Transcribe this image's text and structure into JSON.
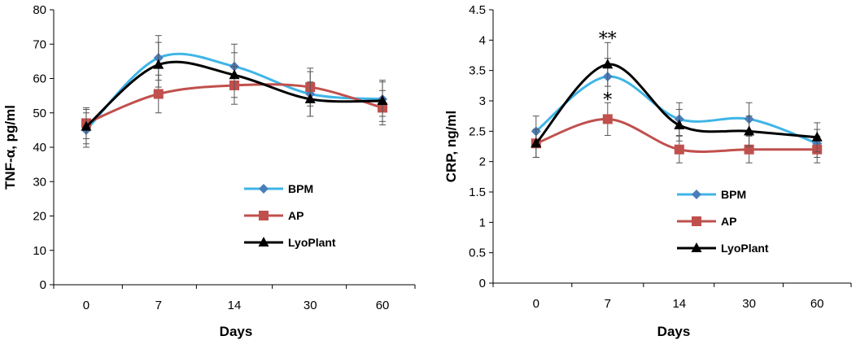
{
  "chart_data": [
    {
      "type": "line",
      "title": "",
      "xlabel": "Days",
      "ylabel": "TNF-α, pg/ml",
      "categories": [
        "0",
        "7",
        "14",
        "30",
        "60"
      ],
      "ylim": [
        0,
        80
      ],
      "yticks": [
        "0",
        "10",
        "20",
        "30",
        "40",
        "50",
        "60",
        "70",
        "80"
      ],
      "ytick_values": [
        0,
        10,
        20,
        30,
        40,
        50,
        60,
        70,
        80
      ],
      "legend_position": "lower-right",
      "series": [
        {
          "name": "BPM",
          "color": "#3fb5e6",
          "marker": "diamond",
          "marker_color": "#4a7ebb",
          "values": [
            45,
            66,
            63.5,
            55.5,
            54
          ],
          "errors": [
            5,
            6.5,
            6.5,
            6.5,
            5
          ]
        },
        {
          "name": "AP",
          "color": "#c0504d",
          "marker": "square",
          "marker_color": "#c0504d",
          "values": [
            47,
            55.5,
            58,
            57.5,
            51.5
          ],
          "errors": [
            4.5,
            5.5,
            5.5,
            5.5,
            5
          ]
        },
        {
          "name": "LyoPlant",
          "color": "#000000",
          "marker": "triangle",
          "marker_color": "#000000",
          "values": [
            46,
            64,
            61,
            54,
            53.5
          ],
          "errors": [
            5,
            6.5,
            6.5,
            5,
            6
          ]
        }
      ],
      "annotations": []
    },
    {
      "type": "line",
      "title": "",
      "xlabel": "Days",
      "ylabel": "CRP,  ng/ml",
      "categories": [
        "0",
        "7",
        "14",
        "30",
        "60"
      ],
      "ylim": [
        0,
        4.5
      ],
      "yticks": [
        "0",
        "0.5",
        "1",
        "1.5",
        "2",
        "2.5",
        "3",
        "3.5",
        "4",
        "4.5"
      ],
      "ytick_values": [
        0,
        0.5,
        1,
        1.5,
        2,
        2.5,
        3,
        3.5,
        4,
        4.5
      ],
      "legend_position": "lower-right",
      "series": [
        {
          "name": "BPM",
          "color": "#3fb5e6",
          "marker": "diamond",
          "marker_color": "#4a7ebb",
          "values": [
            2.5,
            3.4,
            2.7,
            2.7,
            2.3
          ],
          "errors": [
            0.25,
            0.3,
            0.27,
            0.27,
            0.23
          ]
        },
        {
          "name": "AP",
          "color": "#c0504d",
          "marker": "square",
          "marker_color": "#c0504d",
          "values": [
            2.3,
            2.7,
            2.2,
            2.2,
            2.2
          ],
          "errors": [
            0.23,
            0.27,
            0.22,
            0.22,
            0.22
          ]
        },
        {
          "name": "LyoPlant",
          "color": "#000000",
          "marker": "triangle",
          "marker_color": "#000000",
          "values": [
            2.3,
            3.6,
            2.6,
            2.5,
            2.4
          ],
          "errors": [
            0.23,
            0.36,
            0.26,
            0.25,
            0.24
          ]
        }
      ],
      "annotations": [
        {
          "text": "**",
          "category": "7",
          "value": 3.98
        },
        {
          "text": "*",
          "category": "7",
          "value": 2.97
        }
      ]
    }
  ]
}
